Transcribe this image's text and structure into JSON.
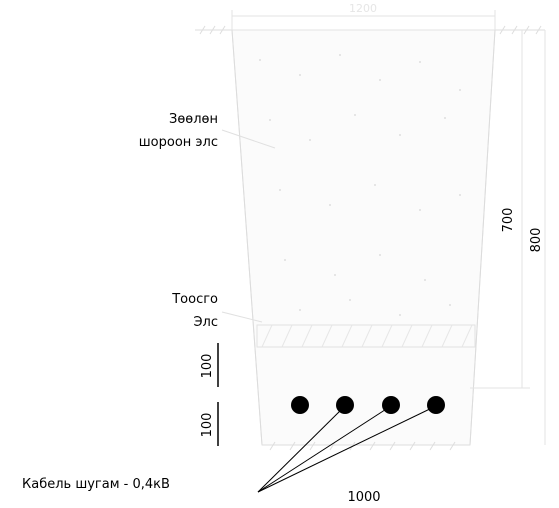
{
  "diagram": {
    "labels": {
      "loose_soil_line1": "Зөөлөн",
      "loose_soil_line2": "шороон элс",
      "sand_line1": "Тоосго",
      "sand_line2": "Элс",
      "cable_callout": "Кабель шугам - 0,4кВ"
    },
    "dimensions": {
      "top_width": "1200",
      "bottom_width": "1000",
      "inner_depth": "700",
      "total_depth": "800",
      "brick_layer": "100",
      "bottom_layer": "100"
    },
    "cables": {
      "count": 4,
      "color": "#000000"
    },
    "colors": {
      "line": "#000000",
      "hatch": "#d9d9d9",
      "faint_text": "#e6e6e6"
    }
  }
}
